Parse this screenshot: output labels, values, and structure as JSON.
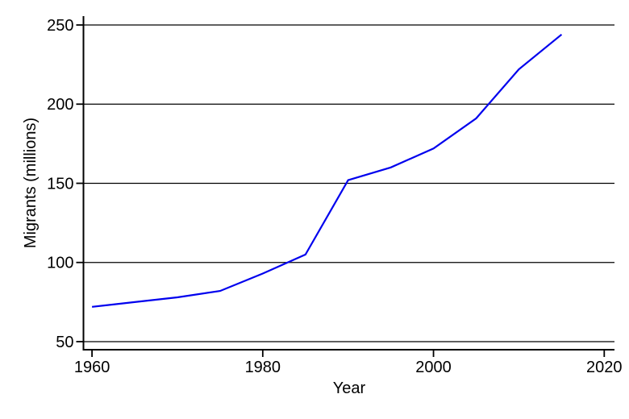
{
  "chart_data": {
    "type": "line",
    "title": "",
    "xlabel": "Year",
    "ylabel": "Migrants (millions)",
    "x": [
      1960,
      1965,
      1970,
      1975,
      1980,
      1985,
      1990,
      1995,
      2000,
      2005,
      2010,
      2015
    ],
    "values": [
      72,
      75,
      78,
      82,
      93,
      105,
      152,
      160,
      172,
      191,
      222,
      244
    ],
    "xticks": [
      1960,
      1980,
      2000,
      2020
    ],
    "xtick_labels": [
      "1960",
      "1980",
      "2000",
      "2020"
    ],
    "yticks": [
      50,
      100,
      150,
      200,
      250
    ],
    "ytick_labels": [
      "50",
      "100",
      "150",
      "200",
      "250"
    ],
    "xlim": [
      1959,
      2021.2
    ],
    "ylim": [
      44.9,
      255.6
    ],
    "grid": "horizontal",
    "legend": "none",
    "colors": {
      "line": "#0000ee",
      "axis": "#000000",
      "grid": "#000000",
      "text": "#000000",
      "background": "#ffffff"
    }
  }
}
